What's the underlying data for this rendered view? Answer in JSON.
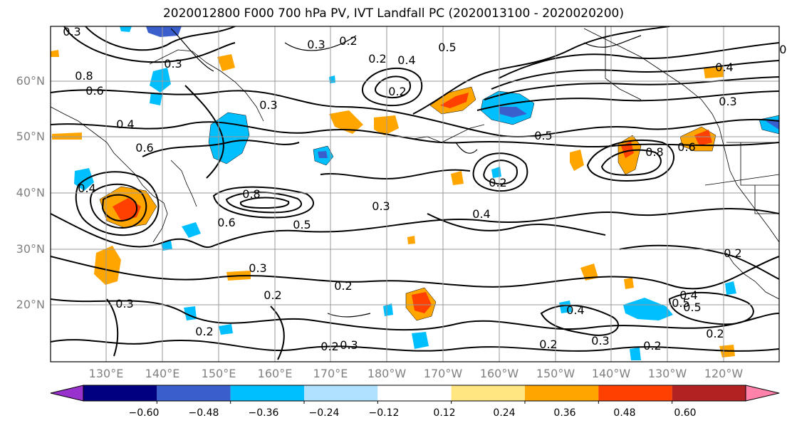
{
  "title": "2020012800 F000 700 hPa PV, IVT Landfall PC (2020013100 - 2020020200)",
  "lat_labels": [
    "60°N",
    "50°N",
    "40°N",
    "30°N",
    "20°N"
  ],
  "lon_labels": [
    "130°E",
    "140°E",
    "150°E",
    "160°E",
    "170°E",
    "180°W",
    "170°W",
    "160°W",
    "150°W",
    "140°W",
    "130°W",
    "120°W"
  ],
  "colorbar": {
    "tick_labels": [
      "−0.60",
      "−0.48",
      "−0.36",
      "−0.24",
      "−0.12",
      "0.12",
      "0.24",
      "0.36",
      "0.48",
      "0.60"
    ],
    "colors": [
      "#9932cc",
      "#000080",
      "#3a5fcd",
      "#00bfff",
      "#b0e2ff",
      "#ffffff",
      "#ffe680",
      "#ffa500",
      "#ff4000",
      "#b22222",
      "#ff82ab"
    ]
  },
  "contour_labels": [
    "0.3",
    "0.2",
    "0.5",
    "0.4",
    "0.3",
    "0.2",
    "0.8",
    "0.6",
    "0.4",
    "0.6",
    "0.3",
    "0.3",
    "0.5",
    "0.4",
    "0.8",
    "0.6",
    "0.3",
    "0.8",
    "0.5",
    "0.3",
    "0.4",
    "0.6",
    "0.3",
    "0.2",
    "0.2",
    "0.3",
    "0.2",
    "0.2",
    "0.5",
    "0.2",
    "0.4",
    "0.4",
    "0.5",
    "0.2",
    "0.3",
    "0.2",
    "0.2",
    "0.3",
    "0.2",
    "0.4",
    "0.3",
    "0.2"
  ]
}
